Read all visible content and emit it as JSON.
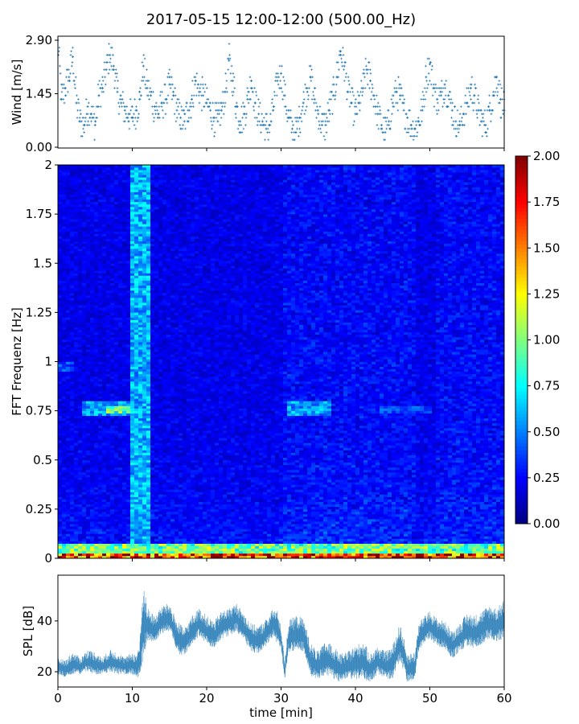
{
  "title": "2017-05-15 12:00-12:00 (500.00_Hz)",
  "chart_data": [
    {
      "type": "scatter",
      "ylabel": "Wind [m/s]",
      "xlabel": "",
      "xlim": [
        0,
        60
      ],
      "ylim": [
        0,
        2.9
      ],
      "yticks": [
        0.0,
        1.45,
        2.9
      ],
      "ytick_labels": [
        "0.00",
        "1.45",
        "2.90"
      ],
      "marker": "+",
      "color": "#1f77b4",
      "series": [
        {
          "x": [
            0,
            0.5,
            1,
            1.5,
            2,
            2.5,
            3,
            3.5,
            4,
            4.5,
            5,
            5.5,
            6,
            6.5,
            7,
            7.5,
            8,
            8.5,
            9,
            9.5,
            10,
            10.5,
            11,
            11.5,
            12,
            12.5,
            13,
            13.5,
            14,
            14.5,
            15,
            15.5,
            16,
            16.5,
            17,
            17.5,
            18,
            18.5,
            19,
            19.5,
            20,
            20.5,
            21,
            21.5,
            22,
            22.5,
            23,
            23.5,
            24,
            24.5,
            25,
            25.5,
            26,
            26.5,
            27,
            27.5,
            28,
            28.5,
            29,
            29.5,
            30,
            30.5,
            31,
            31.5,
            32,
            32.5,
            33,
            33.5,
            34,
            34.5,
            35,
            35.5,
            36,
            36.5,
            37,
            37.5,
            38,
            38.5,
            39,
            39.5,
            40,
            40.5,
            41,
            41.5,
            42,
            42.5,
            43,
            43.5,
            44,
            44.5,
            45,
            45.5,
            46,
            46.5,
            47,
            47.5,
            48,
            48.5,
            49,
            49.5,
            50,
            50.5,
            51,
            51.5,
            52,
            52.5,
            53,
            53.5,
            54,
            54.5,
            55,
            55.5,
            56,
            56.5,
            57,
            57.5,
            58,
            58.5,
            59,
            59.5,
            60
          ],
          "y": [
            2.9,
            1.3,
            1.6,
            1.9,
            2.45,
            1.2,
            0.7,
            0.6,
            1.1,
            0.9,
            0.6,
            1.4,
            1.6,
            2.1,
            2.5,
            2.2,
            1.5,
            1.2,
            1.0,
            0.9,
            0.8,
            1.0,
            1.3,
            2.2,
            1.6,
            1.4,
            1.1,
            0.9,
            1.2,
            1.3,
            1.7,
            1.4,
            1.0,
            0.8,
            0.7,
            1.0,
            1.3,
            1.8,
            1.5,
            1.4,
            1.2,
            1.0,
            0.8,
            0.7,
            1.0,
            1.5,
            2.35,
            1.8,
            1.1,
            0.7,
            0.9,
            1.3,
            1.8,
            1.2,
            0.9,
            0.7,
            0.5,
            0.6,
            1.1,
            1.8,
            2.0,
            1.4,
            0.8,
            0.5,
            0.4,
            0.8,
            1.2,
            1.6,
            1.9,
            1.3,
            0.9,
            0.6,
            0.6,
            1.0,
            1.4,
            1.9,
            2.6,
            2.2,
            1.5,
            1.2,
            0.9,
            1.2,
            1.6,
            2.1,
            1.8,
            1.4,
            0.9,
            0.6,
            0.4,
            0.7,
            1.2,
            1.5,
            1.4,
            1.0,
            0.8,
            0.6,
            0.5,
            0.7,
            1.0,
            1.9,
            2.25,
            1.6,
            1.3,
            1.4,
            1.7,
            1.4,
            1.0,
            0.7,
            0.6,
            0.9,
            1.2,
            1.6,
            1.4,
            1.0,
            0.7,
            0.6,
            1.0,
            1.4,
            1.9,
            1.3,
            1.0
          ]
        }
      ]
    },
    {
      "type": "heatmap",
      "ylabel": "FFT Frequenz [Hz]",
      "xlabel": "",
      "xlim": [
        0,
        60
      ],
      "ylim": [
        0,
        2
      ],
      "yticks": [
        0,
        0.25,
        0.5,
        0.75,
        1,
        1.25,
        1.5,
        1.75,
        2
      ],
      "ytick_labels": [
        "0",
        "0.25",
        "0.5",
        "0.75",
        "1",
        "1.25",
        "1.5",
        "1.75",
        "2"
      ],
      "colormap": "jet",
      "colorbar": {
        "range": [
          0,
          2
        ],
        "ticks": [
          "0.00",
          "0.25",
          "0.50",
          "0.75",
          "1.00",
          "1.25",
          "1.50",
          "1.75",
          "2.00"
        ]
      },
      "features": [
        {
          "x": [
            9.5,
            12.5
          ],
          "y": [
            0,
            2
          ],
          "level": 0.75
        },
        {
          "x": [
            3,
            9.5
          ],
          "y": [
            0.72,
            0.8
          ],
          "level": 0.7
        },
        {
          "x": [
            6.5,
            9.5
          ],
          "y": [
            0.74,
            0.78
          ],
          "level": 1.1
        },
        {
          "x": [
            0,
            2
          ],
          "y": [
            0.95,
            1.0
          ],
          "level": 0.5
        },
        {
          "x": [
            31,
            37
          ],
          "y": [
            0.72,
            0.8
          ],
          "level": 0.7
        },
        {
          "x": [
            43,
            50
          ],
          "y": [
            0.74,
            0.78
          ],
          "level": 0.5
        },
        {
          "x": [
            0,
            60
          ],
          "y": [
            0,
            0.08
          ],
          "level": 1.2
        },
        {
          "x": [
            0,
            60
          ],
          "y": [
            0,
            0.02
          ],
          "level": 2.0
        }
      ]
    },
    {
      "type": "area",
      "ylabel": "SPL [dB]",
      "xlabel": "time [min]",
      "xlim": [
        0,
        60
      ],
      "ylim": [
        14,
        58
      ],
      "yticks": [
        20,
        40
      ],
      "xticks": [
        0,
        10,
        20,
        30,
        40,
        50,
        60
      ],
      "color": "#1f77b4",
      "x": [
        0,
        1,
        2,
        3,
        4,
        5,
        6,
        7,
        8,
        9,
        10,
        10.5,
        11,
        11.5,
        12,
        13,
        14,
        15,
        16,
        17,
        18,
        19,
        20,
        21,
        22,
        23,
        24,
        25,
        26,
        27,
        28,
        29,
        29.5,
        30,
        30.5,
        31,
        32,
        33,
        34,
        35,
        36,
        37,
        38,
        39,
        40,
        41,
        42,
        43,
        44,
        45,
        46,
        47,
        48,
        48.5,
        49,
        50,
        51,
        52,
        53,
        54,
        55,
        56,
        57,
        58,
        59,
        60
      ],
      "mean": [
        22,
        21,
        23,
        22,
        24,
        23,
        22,
        24,
        23,
        22,
        23,
        22,
        24,
        40,
        38,
        36,
        40,
        41,
        33,
        31,
        36,
        39,
        36,
        34,
        38,
        39,
        41,
        37,
        33,
        32,
        35,
        39,
        37,
        33,
        20,
        33,
        35,
        34,
        24,
        22,
        25,
        23,
        21,
        22,
        23,
        24,
        21,
        24,
        22,
        23,
        31,
        21,
        22,
        33,
        35,
        38,
        35,
        34,
        30,
        33,
        36,
        35,
        37,
        39,
        38,
        40
      ],
      "spread": [
        3,
        3,
        4,
        3,
        4,
        4,
        3,
        4,
        4,
        3,
        4,
        4,
        7,
        14,
        6,
        5,
        5,
        5,
        6,
        5,
        5,
        5,
        5,
        5,
        5,
        5,
        5,
        5,
        5,
        5,
        5,
        5,
        6,
        4,
        4,
        6,
        6,
        6,
        6,
        5,
        6,
        6,
        5,
        5,
        6,
        7,
        5,
        5,
        5,
        6,
        7,
        5,
        5,
        5,
        5,
        5,
        5,
        5,
        5,
        5,
        6,
        6,
        6,
        6,
        6,
        7
      ]
    }
  ]
}
